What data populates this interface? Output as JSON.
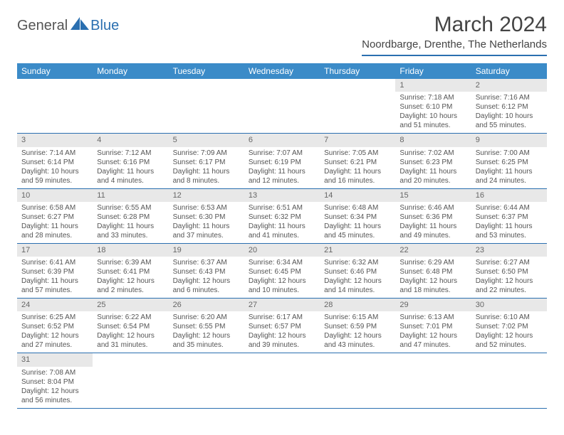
{
  "logo": {
    "part1": "General",
    "part2": "Blue"
  },
  "title": "March 2024",
  "location": "Noordbarge, Drenthe, The Netherlands",
  "header_bg": "#3b8bc8",
  "accent": "#2a6fb0",
  "daynum_bg": "#e8e8e8",
  "text_color": "#555555",
  "day_names": [
    "Sunday",
    "Monday",
    "Tuesday",
    "Wednesday",
    "Thursday",
    "Friday",
    "Saturday"
  ],
  "weeks": [
    [
      null,
      null,
      null,
      null,
      null,
      {
        "n": "1",
        "sr": "Sunrise: 7:18 AM",
        "ss": "Sunset: 6:10 PM",
        "d1": "Daylight: 10 hours",
        "d2": "and 51 minutes."
      },
      {
        "n": "2",
        "sr": "Sunrise: 7:16 AM",
        "ss": "Sunset: 6:12 PM",
        "d1": "Daylight: 10 hours",
        "d2": "and 55 minutes."
      }
    ],
    [
      {
        "n": "3",
        "sr": "Sunrise: 7:14 AM",
        "ss": "Sunset: 6:14 PM",
        "d1": "Daylight: 10 hours",
        "d2": "and 59 minutes."
      },
      {
        "n": "4",
        "sr": "Sunrise: 7:12 AM",
        "ss": "Sunset: 6:16 PM",
        "d1": "Daylight: 11 hours",
        "d2": "and 4 minutes."
      },
      {
        "n": "5",
        "sr": "Sunrise: 7:09 AM",
        "ss": "Sunset: 6:17 PM",
        "d1": "Daylight: 11 hours",
        "d2": "and 8 minutes."
      },
      {
        "n": "6",
        "sr": "Sunrise: 7:07 AM",
        "ss": "Sunset: 6:19 PM",
        "d1": "Daylight: 11 hours",
        "d2": "and 12 minutes."
      },
      {
        "n": "7",
        "sr": "Sunrise: 7:05 AM",
        "ss": "Sunset: 6:21 PM",
        "d1": "Daylight: 11 hours",
        "d2": "and 16 minutes."
      },
      {
        "n": "8",
        "sr": "Sunrise: 7:02 AM",
        "ss": "Sunset: 6:23 PM",
        "d1": "Daylight: 11 hours",
        "d2": "and 20 minutes."
      },
      {
        "n": "9",
        "sr": "Sunrise: 7:00 AM",
        "ss": "Sunset: 6:25 PM",
        "d1": "Daylight: 11 hours",
        "d2": "and 24 minutes."
      }
    ],
    [
      {
        "n": "10",
        "sr": "Sunrise: 6:58 AM",
        "ss": "Sunset: 6:27 PM",
        "d1": "Daylight: 11 hours",
        "d2": "and 28 minutes."
      },
      {
        "n": "11",
        "sr": "Sunrise: 6:55 AM",
        "ss": "Sunset: 6:28 PM",
        "d1": "Daylight: 11 hours",
        "d2": "and 33 minutes."
      },
      {
        "n": "12",
        "sr": "Sunrise: 6:53 AM",
        "ss": "Sunset: 6:30 PM",
        "d1": "Daylight: 11 hours",
        "d2": "and 37 minutes."
      },
      {
        "n": "13",
        "sr": "Sunrise: 6:51 AM",
        "ss": "Sunset: 6:32 PM",
        "d1": "Daylight: 11 hours",
        "d2": "and 41 minutes."
      },
      {
        "n": "14",
        "sr": "Sunrise: 6:48 AM",
        "ss": "Sunset: 6:34 PM",
        "d1": "Daylight: 11 hours",
        "d2": "and 45 minutes."
      },
      {
        "n": "15",
        "sr": "Sunrise: 6:46 AM",
        "ss": "Sunset: 6:36 PM",
        "d1": "Daylight: 11 hours",
        "d2": "and 49 minutes."
      },
      {
        "n": "16",
        "sr": "Sunrise: 6:44 AM",
        "ss": "Sunset: 6:37 PM",
        "d1": "Daylight: 11 hours",
        "d2": "and 53 minutes."
      }
    ],
    [
      {
        "n": "17",
        "sr": "Sunrise: 6:41 AM",
        "ss": "Sunset: 6:39 PM",
        "d1": "Daylight: 11 hours",
        "d2": "and 57 minutes."
      },
      {
        "n": "18",
        "sr": "Sunrise: 6:39 AM",
        "ss": "Sunset: 6:41 PM",
        "d1": "Daylight: 12 hours",
        "d2": "and 2 minutes."
      },
      {
        "n": "19",
        "sr": "Sunrise: 6:37 AM",
        "ss": "Sunset: 6:43 PM",
        "d1": "Daylight: 12 hours",
        "d2": "and 6 minutes."
      },
      {
        "n": "20",
        "sr": "Sunrise: 6:34 AM",
        "ss": "Sunset: 6:45 PM",
        "d1": "Daylight: 12 hours",
        "d2": "and 10 minutes."
      },
      {
        "n": "21",
        "sr": "Sunrise: 6:32 AM",
        "ss": "Sunset: 6:46 PM",
        "d1": "Daylight: 12 hours",
        "d2": "and 14 minutes."
      },
      {
        "n": "22",
        "sr": "Sunrise: 6:29 AM",
        "ss": "Sunset: 6:48 PM",
        "d1": "Daylight: 12 hours",
        "d2": "and 18 minutes."
      },
      {
        "n": "23",
        "sr": "Sunrise: 6:27 AM",
        "ss": "Sunset: 6:50 PM",
        "d1": "Daylight: 12 hours",
        "d2": "and 22 minutes."
      }
    ],
    [
      {
        "n": "24",
        "sr": "Sunrise: 6:25 AM",
        "ss": "Sunset: 6:52 PM",
        "d1": "Daylight: 12 hours",
        "d2": "and 27 minutes."
      },
      {
        "n": "25",
        "sr": "Sunrise: 6:22 AM",
        "ss": "Sunset: 6:54 PM",
        "d1": "Daylight: 12 hours",
        "d2": "and 31 minutes."
      },
      {
        "n": "26",
        "sr": "Sunrise: 6:20 AM",
        "ss": "Sunset: 6:55 PM",
        "d1": "Daylight: 12 hours",
        "d2": "and 35 minutes."
      },
      {
        "n": "27",
        "sr": "Sunrise: 6:17 AM",
        "ss": "Sunset: 6:57 PM",
        "d1": "Daylight: 12 hours",
        "d2": "and 39 minutes."
      },
      {
        "n": "28",
        "sr": "Sunrise: 6:15 AM",
        "ss": "Sunset: 6:59 PM",
        "d1": "Daylight: 12 hours",
        "d2": "and 43 minutes."
      },
      {
        "n": "29",
        "sr": "Sunrise: 6:13 AM",
        "ss": "Sunset: 7:01 PM",
        "d1": "Daylight: 12 hours",
        "d2": "and 47 minutes."
      },
      {
        "n": "30",
        "sr": "Sunrise: 6:10 AM",
        "ss": "Sunset: 7:02 PM",
        "d1": "Daylight: 12 hours",
        "d2": "and 52 minutes."
      }
    ],
    [
      {
        "n": "31",
        "sr": "Sunrise: 7:08 AM",
        "ss": "Sunset: 8:04 PM",
        "d1": "Daylight: 12 hours",
        "d2": "and 56 minutes."
      },
      null,
      null,
      null,
      null,
      null,
      null
    ]
  ]
}
